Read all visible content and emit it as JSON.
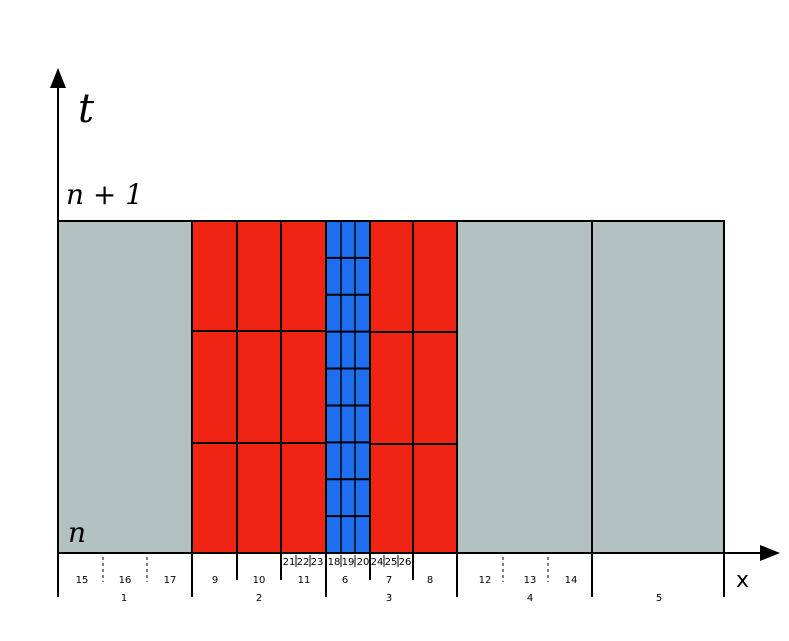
{
  "axes": {
    "time": "t",
    "space": "x",
    "upper_level": "n + 1",
    "lower_level": "n"
  },
  "cell_labels": {
    "fine": [
      "15",
      "16",
      "17",
      "9",
      "10",
      "11",
      "6",
      "7",
      "8",
      "12",
      "13",
      "14"
    ],
    "finest": [
      "21",
      "22",
      "23",
      "18",
      "19",
      "20",
      "24",
      "25",
      "26"
    ],
    "coarse": [
      "1",
      "2",
      "3",
      "4",
      "5"
    ]
  }
}
